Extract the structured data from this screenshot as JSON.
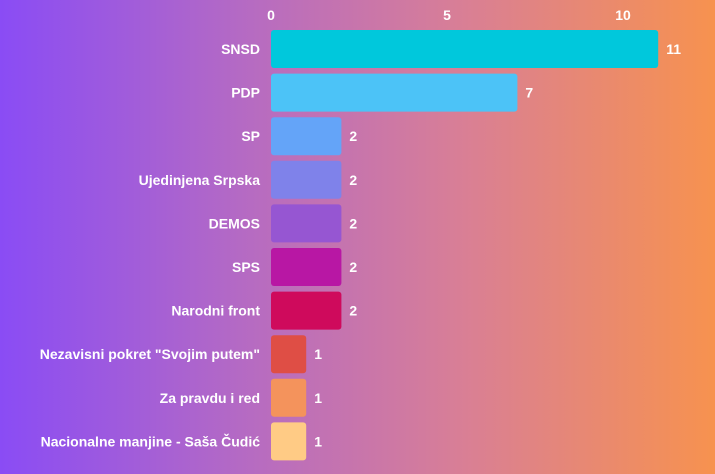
{
  "chart_data": {
    "type": "bar",
    "orientation": "horizontal",
    "categories": [
      "SNSD",
      "PDP",
      "SP",
      "Ujedinjena Srpska",
      "DEMOS",
      "SPS",
      "Narodni front",
      "Nezavisni pokret \"Svojim putem\"",
      "Za pravdu i red",
      "Nacionalne manjine - Saša Čudić"
    ],
    "values": [
      11,
      7,
      2,
      2,
      2,
      2,
      2,
      1,
      1,
      1
    ],
    "colors": [
      "#00c8dc",
      "#4cc3f7",
      "#64a4f8",
      "#7f82ea",
      "#9656d2",
      "#b817a4",
      "#cf0a5c",
      "#df4e45",
      "#f4935c",
      "#ffcb85"
    ],
    "xlim": [
      0,
      11
    ],
    "xticks": [
      0,
      5,
      10
    ],
    "xaxis_position": "top",
    "grid": false,
    "data_labels": [
      "11",
      "7",
      "2",
      "2",
      "2",
      "2",
      "2",
      "1",
      "1",
      "1"
    ]
  }
}
